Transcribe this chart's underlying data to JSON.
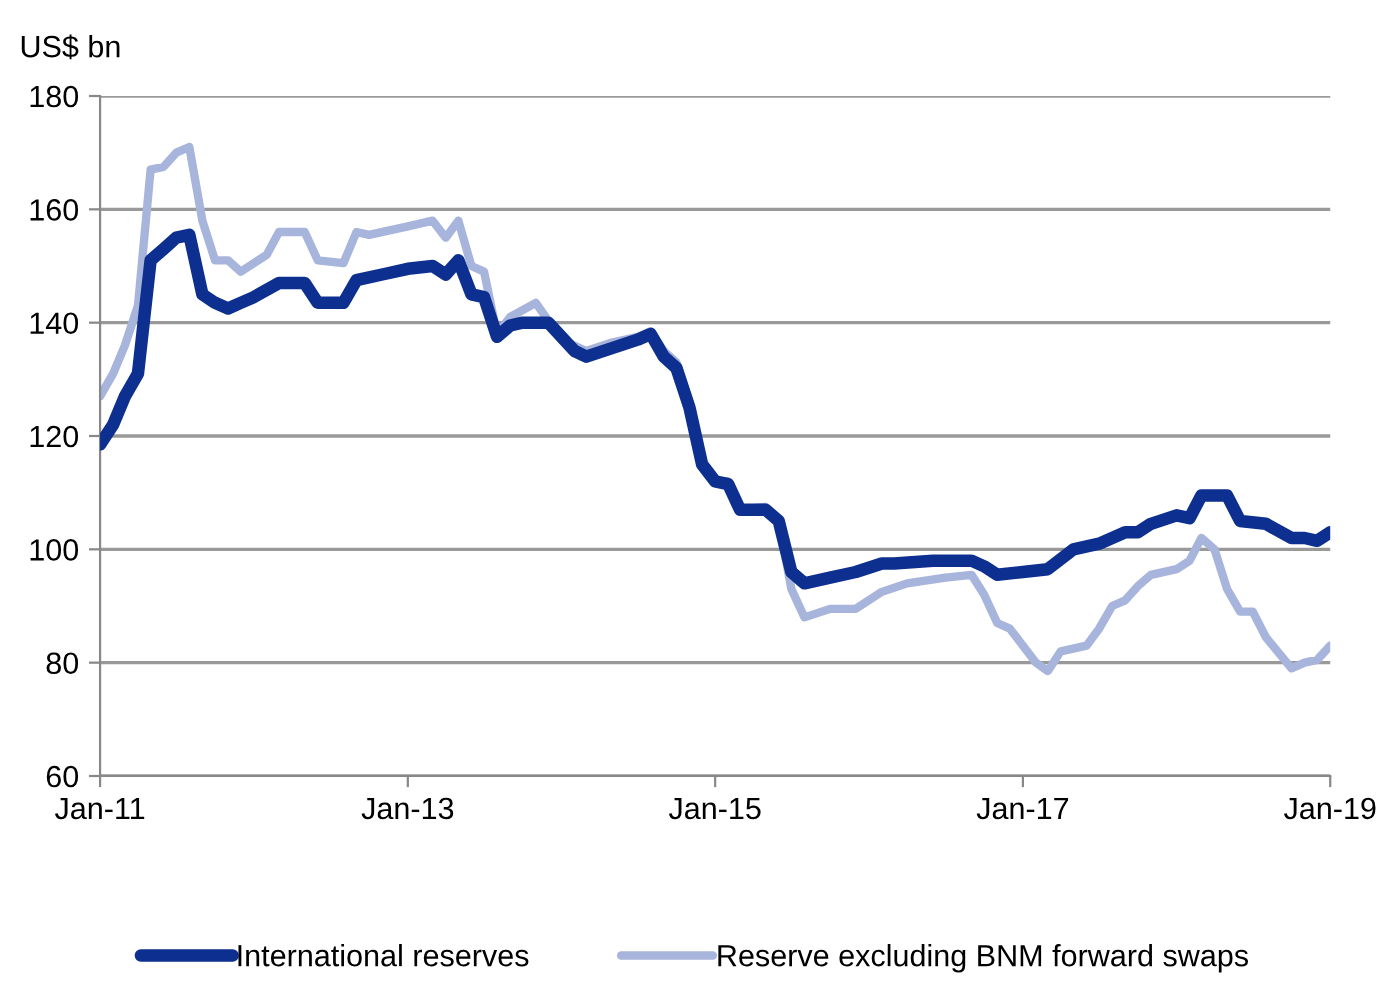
{
  "chart_data": {
    "type": "line",
    "ylabel": "US$ bn",
    "ylim": [
      60,
      180
    ],
    "yticks": [
      60,
      80,
      100,
      120,
      140,
      160,
      180
    ],
    "xlim": [
      "2011-01",
      "2019-01"
    ],
    "xticks": [
      {
        "value": "2011-01",
        "label": "Jan-11"
      },
      {
        "value": "2013-01",
        "label": "Jan-13"
      },
      {
        "value": "2015-01",
        "label": "Jan-15"
      },
      {
        "value": "2017-01",
        "label": "Jan-17"
      },
      {
        "value": "2019-01",
        "label": "Jan-19"
      }
    ],
    "grid": "y",
    "legend": "bottom",
    "marker": "none",
    "line_style": "solid",
    "series": [
      {
        "name": "International reserves",
        "color": "#0d2f8f",
        "x": [
          "2011-01",
          "2011-02",
          "2011-03",
          "2011-04",
          "2011-05",
          "2011-06",
          "2011-07",
          "2011-08",
          "2011-09",
          "2011-10",
          "2011-11",
          "2011-12",
          "2012-01",
          "2012-03",
          "2012-05",
          "2012-06",
          "2012-08",
          "2012-09",
          "2012-11",
          "2013-01",
          "2013-03",
          "2013-04",
          "2013-05",
          "2013-06",
          "2013-07",
          "2013-08",
          "2013-09",
          "2013-10",
          "2013-12",
          "2014-02",
          "2014-03",
          "2014-05",
          "2014-07",
          "2014-08",
          "2014-09",
          "2014-10",
          "2014-11",
          "2014-12",
          "2015-01",
          "2015-02",
          "2015-03",
          "2015-05",
          "2015-06",
          "2015-07",
          "2015-08",
          "2015-10",
          "2015-12",
          "2016-02",
          "2016-03",
          "2016-06",
          "2016-09",
          "2016-10",
          "2016-11",
          "2017-01",
          "2017-03",
          "2017-05",
          "2017-07",
          "2017-09",
          "2017-10",
          "2017-11",
          "2018-01",
          "2018-02",
          "2018-03",
          "2018-05",
          "2018-06",
          "2018-08",
          "2018-10",
          "2018-11",
          "2018-12",
          "2019-01"
        ],
        "values": [
          118.5,
          122,
          127,
          131,
          151,
          153,
          155,
          155.5,
          145,
          143.5,
          142.5,
          143.5,
          144.5,
          147,
          147,
          143.5,
          143.5,
          147.5,
          148.5,
          149.5,
          150,
          148.5,
          151,
          145,
          144.5,
          137.5,
          139.5,
          140,
          140,
          135,
          134,
          135.5,
          137,
          138,
          134,
          132,
          125,
          115,
          112,
          111.5,
          107,
          107,
          105,
          96,
          94,
          95,
          96,
          97.5,
          97.5,
          98,
          98,
          97,
          95.5,
          96,
          96.5,
          100,
          101,
          103,
          103,
          104.5,
          106,
          105.5,
          109.5,
          109.5,
          105,
          104.5,
          102,
          102,
          101.5,
          103
        ]
      },
      {
        "name": "Reserve excluding BNM forward swaps",
        "color": "#a7b4dc",
        "x": [
          "2011-01",
          "2011-02",
          "2011-03",
          "2011-04",
          "2011-05",
          "2011-06",
          "2011-07",
          "2011-08",
          "2011-09",
          "2011-10",
          "2011-11",
          "2011-12",
          "2012-01",
          "2012-02",
          "2012-03",
          "2012-05",
          "2012-06",
          "2012-08",
          "2012-09",
          "2012-10",
          "2013-01",
          "2013-03",
          "2013-04",
          "2013-05",
          "2013-06",
          "2013-07",
          "2013-08",
          "2013-09",
          "2013-11",
          "2014-01",
          "2014-03",
          "2014-05",
          "2014-07",
          "2014-08",
          "2014-09",
          "2014-10",
          "2014-11",
          "2014-12",
          "2015-01",
          "2015-02",
          "2015-03",
          "2015-05",
          "2015-06",
          "2015-07",
          "2015-08",
          "2015-10",
          "2015-12",
          "2016-02",
          "2016-04",
          "2016-07",
          "2016-09",
          "2016-10",
          "2016-11",
          "2016-12",
          "2017-02",
          "2017-03",
          "2017-04",
          "2017-06",
          "2017-07",
          "2017-08",
          "2017-09",
          "2017-10",
          "2017-11",
          "2018-01",
          "2018-02",
          "2018-03",
          "2018-04",
          "2018-05",
          "2018-06",
          "2018-07",
          "2018-08",
          "2018-10",
          "2018-11",
          "2018-12",
          "2019-01"
        ],
        "values": [
          127,
          131,
          136,
          143,
          167,
          167.5,
          170,
          171,
          158,
          151,
          151,
          149,
          150.5,
          152,
          156,
          156,
          151,
          150.5,
          156,
          155.5,
          157,
          158,
          155,
          158,
          150,
          149,
          138,
          141,
          143.5,
          137,
          135,
          136.5,
          137.5,
          138.5,
          135,
          133,
          126,
          115,
          112,
          112,
          107,
          107.5,
          105,
          93,
          88,
          89.5,
          89.5,
          92.5,
          94,
          95,
          95.5,
          92,
          87,
          86,
          80,
          78.5,
          82,
          83,
          86,
          90,
          91,
          93.5,
          95.5,
          96.5,
          98,
          102,
          100,
          93,
          89,
          89,
          84.5,
          79,
          80,
          80.5,
          83
        ]
      }
    ]
  }
}
